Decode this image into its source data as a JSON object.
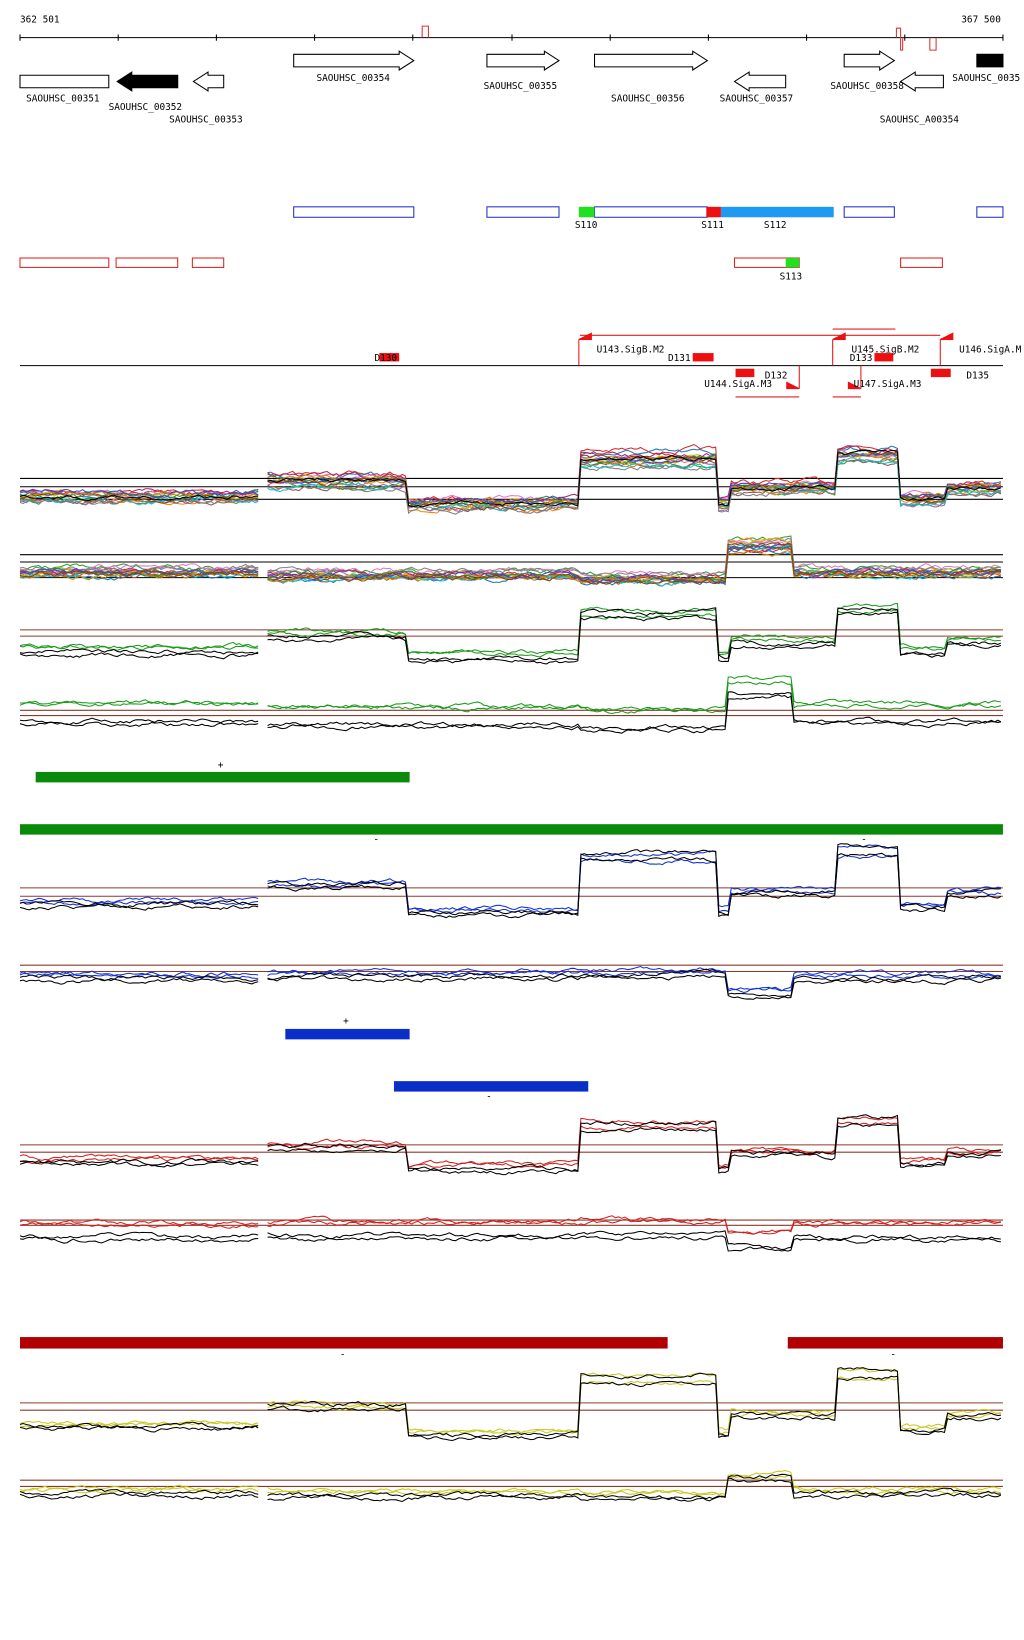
{
  "ruler": {
    "start": "362 501",
    "end": "367 500"
  },
  "genes": [
    {
      "label": "SAOUHSC_00351"
    },
    {
      "label": "SAOUHSC_00352"
    },
    {
      "label": "SAOUHSC_00353"
    },
    {
      "label": "SAOUHSC_00354"
    },
    {
      "label": "SAOUHSC_00355"
    },
    {
      "label": "SAOUHSC_00356"
    },
    {
      "label": "SAOUHSC_00357"
    },
    {
      "label": "SAOUHSC_00358"
    },
    {
      "label": "SAOUHSC_A00354"
    },
    {
      "label": "SAOUHSC_0035"
    }
  ],
  "segments": [
    "S110",
    "S111",
    "S112",
    "S113"
  ],
  "promoters": [
    "D130",
    "U143.SigB.M2",
    "D131",
    "D132",
    "U144.SigA.M3",
    "U145.SigB.M2",
    "D133",
    "U147.SigA.M3",
    "U146.SigA.M",
    "D135"
  ],
  "strand_marks": [
    "+",
    "-",
    "-",
    "+",
    "-",
    "-",
    "-"
  ]
}
